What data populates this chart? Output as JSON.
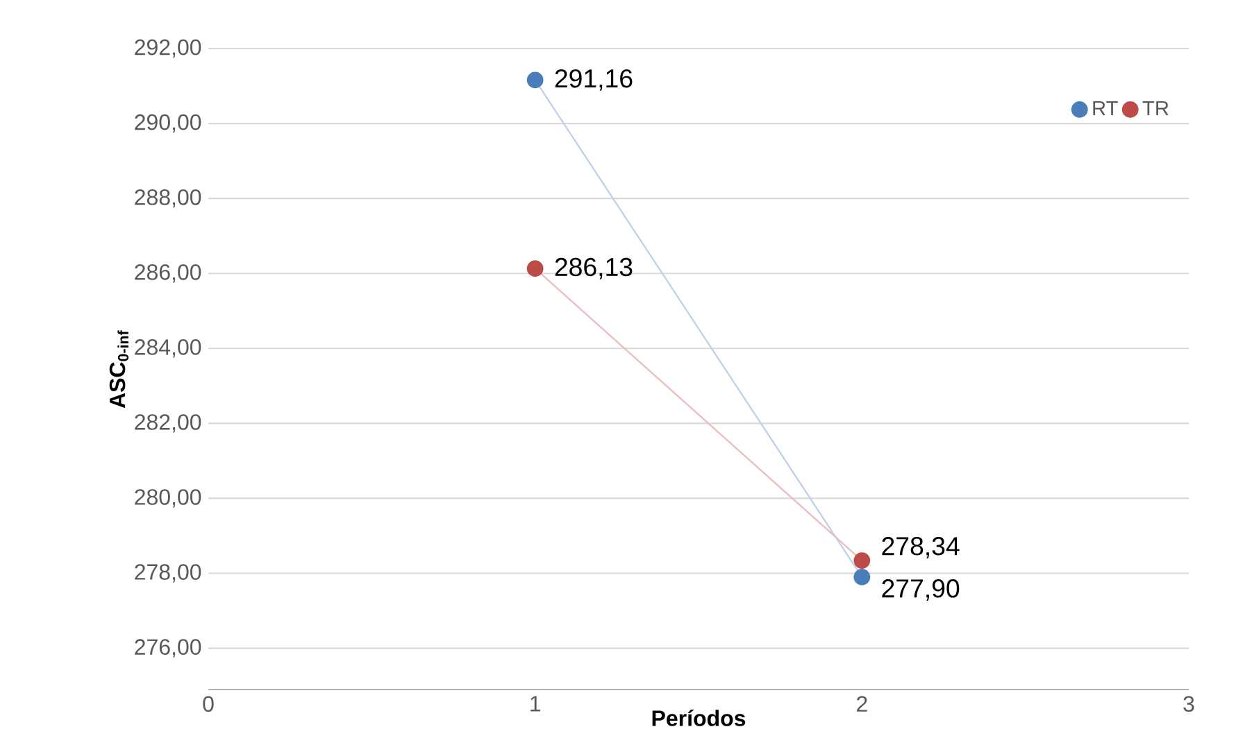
{
  "chart_data": {
    "type": "line",
    "xlabel": "Períodos",
    "ylabel": "ASC$_{0-inf}$",
    "x": [
      1,
      2
    ],
    "series": [
      {
        "name": "RT",
        "color": "#4a7ebb",
        "values": [
          291.16,
          277.9
        ],
        "value_labels": [
          "291,16",
          "277,90"
        ]
      },
      {
        "name": "TR",
        "color": "#be4b48",
        "values": [
          286.13,
          278.34
        ],
        "value_labels": [
          "286,13",
          "278,34"
        ]
      }
    ],
    "xlim": [
      0,
      3
    ],
    "xticks": [
      0,
      1,
      2,
      3
    ],
    "ylim": [
      274.9,
      292
    ],
    "yticks": [
      {
        "value": 276,
        "label": "276,00"
      },
      {
        "value": 278,
        "label": "278,00"
      },
      {
        "value": 280,
        "label": "280,00"
      },
      {
        "value": 282,
        "label": "282,00"
      },
      {
        "value": 284,
        "label": "284,00"
      },
      {
        "value": 286,
        "label": "286,00"
      },
      {
        "value": 288,
        "label": "288,00"
      },
      {
        "value": 290,
        "label": "290,00"
      },
      {
        "value": 292,
        "label": "292,00"
      }
    ],
    "grid": "y",
    "legend": "top right",
    "marker": "circle",
    "line_style": "solid"
  }
}
